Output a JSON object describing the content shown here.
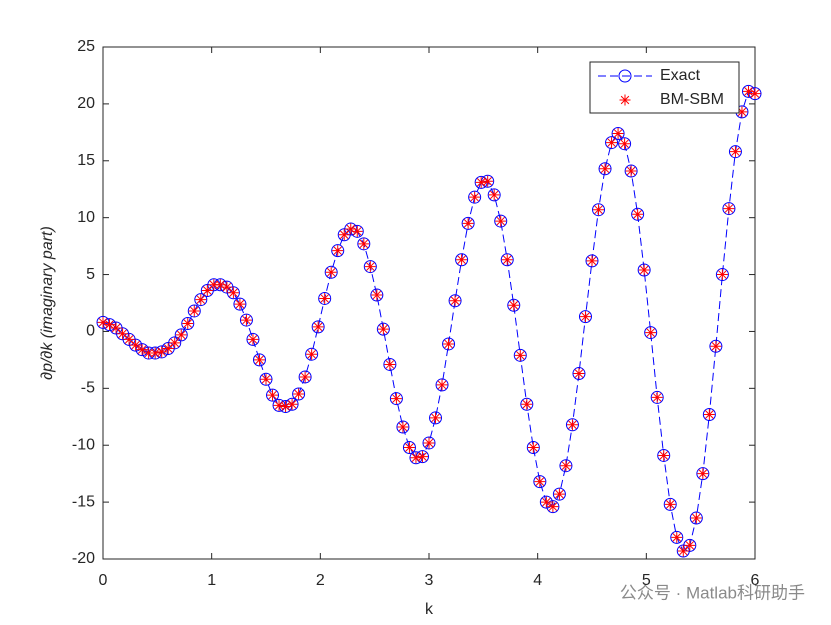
{
  "chart_data": {
    "type": "line",
    "xlabel": "k",
    "ylabel": "∂p/∂k (imaginary part)",
    "watermark": "公众号 · Matlab科研助手",
    "xlim": [
      0,
      6
    ],
    "ylim": [
      -20,
      25
    ],
    "xticks": [
      0,
      1,
      2,
      3,
      4,
      5,
      6
    ],
    "yticks": [
      -20,
      -15,
      -10,
      -5,
      0,
      5,
      10,
      15,
      20,
      25
    ],
    "legend": "upper right",
    "x": [
      0,
      0.06,
      0.12,
      0.18,
      0.24,
      0.3,
      0.36,
      0.42,
      0.48,
      0.54,
      0.6,
      0.66,
      0.72,
      0.78,
      0.84,
      0.9,
      0.96,
      1.02,
      1.08,
      1.14,
      1.2,
      1.26,
      1.32,
      1.38,
      1.44,
      1.5,
      1.56,
      1.62,
      1.68,
      1.74,
      1.8,
      1.86,
      1.92,
      1.98,
      2.04,
      2.1,
      2.16,
      2.22,
      2.28,
      2.34,
      2.4,
      2.46,
      2.52,
      2.58,
      2.64,
      2.7,
      2.76,
      2.82,
      2.88,
      2.94,
      3,
      3.06,
      3.12,
      3.18,
      3.24,
      3.3,
      3.36,
      3.42,
      3.48,
      3.54,
      3.6,
      3.66,
      3.72,
      3.78,
      3.84,
      3.9,
      3.96,
      4.02,
      4.08,
      4.14,
      4.2,
      4.26,
      4.32,
      4.38,
      4.44,
      4.5,
      4.56,
      4.62,
      4.68,
      4.74,
      4.8,
      4.86,
      4.92,
      4.98,
      5.04,
      5.1,
      5.16,
      5.22,
      5.28,
      5.34,
      5.4,
      5.46,
      5.52,
      5.58,
      5.64,
      5.7,
      5.76,
      5.82,
      5.88,
      5.94,
      6
    ],
    "series": [
      {
        "name": "Exact",
        "color": "#0000ff",
        "marker": "circle",
        "linestyle": "dashed",
        "values": [
          0.8,
          0.6,
          0.3,
          -0.2,
          -0.7,
          -1.2,
          -1.6,
          -1.9,
          -1.9,
          -1.8,
          -1.5,
          -1.0,
          -0.3,
          0.7,
          1.8,
          2.8,
          3.6,
          4.1,
          4.1,
          3.9,
          3.4,
          2.4,
          1.0,
          -0.7,
          -2.5,
          -4.2,
          -5.6,
          -6.5,
          -6.6,
          -6.4,
          -5.5,
          -4.0,
          -2.0,
          0.4,
          2.9,
          5.2,
          7.1,
          8.5,
          9.0,
          8.8,
          7.7,
          5.7,
          3.2,
          0.2,
          -2.9,
          -5.9,
          -8.4,
          -10.2,
          -11.1,
          -11.0,
          -9.8,
          -7.6,
          -4.7,
          -1.1,
          2.7,
          6.3,
          9.5,
          11.8,
          13.1,
          13.2,
          12.0,
          9.7,
          6.3,
          2.3,
          -2.1,
          -6.4,
          -10.2,
          -13.2,
          -15.0,
          -15.4,
          -14.3,
          -11.8,
          -8.2,
          -3.7,
          1.3,
          6.2,
          10.7,
          14.3,
          16.6,
          17.4,
          16.5,
          14.1,
          10.3,
          5.4,
          -0.1,
          -5.8,
          -10.9,
          -15.2,
          -18.1,
          -19.3,
          -18.8,
          -16.4,
          -12.5,
          -7.3,
          -1.3,
          5.0,
          10.8,
          15.8,
          19.3,
          21.1,
          20.9
        ]
      },
      {
        "name": "BM-SBM",
        "color": "#ff0000",
        "marker": "asterisk",
        "linestyle": "none",
        "values": [
          0.8,
          0.6,
          0.3,
          -0.2,
          -0.7,
          -1.2,
          -1.6,
          -1.9,
          -1.9,
          -1.8,
          -1.5,
          -1.0,
          -0.3,
          0.7,
          1.8,
          2.8,
          3.6,
          4.1,
          4.1,
          3.9,
          3.4,
          2.4,
          1.0,
          -0.7,
          -2.5,
          -4.2,
          -5.6,
          -6.5,
          -6.6,
          -6.4,
          -5.5,
          -4.0,
          -2.0,
          0.4,
          2.9,
          5.2,
          7.1,
          8.5,
          9.0,
          8.8,
          7.7,
          5.7,
          3.2,
          0.2,
          -2.9,
          -5.9,
          -8.4,
          -10.2,
          -11.1,
          -11.0,
          -9.8,
          -7.6,
          -4.7,
          -1.1,
          2.7,
          6.3,
          9.5,
          11.8,
          13.1,
          13.2,
          12.0,
          9.7,
          6.3,
          2.3,
          -2.1,
          -6.4,
          -10.2,
          -13.2,
          -15.0,
          -15.4,
          -14.3,
          -11.8,
          -8.2,
          -3.7,
          1.3,
          6.2,
          10.7,
          14.3,
          16.6,
          17.4,
          16.5,
          14.1,
          10.3,
          5.4,
          -0.1,
          -5.8,
          -10.9,
          -15.2,
          -18.1,
          -19.3,
          -18.8,
          -16.4,
          -12.5,
          -7.3,
          -1.3,
          5.0,
          10.8,
          15.8,
          19.3,
          21.1,
          20.9
        ]
      }
    ]
  }
}
